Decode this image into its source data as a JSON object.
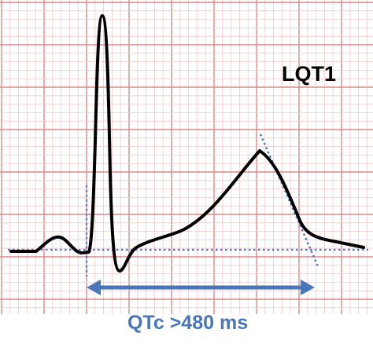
{
  "title": "LQT1",
  "measurement": {
    "label": "QTc >480 ms"
  },
  "colors": {
    "grid_major": "#d98a8a",
    "grid_minor": "#f0caca",
    "trace": "#000000",
    "annotation": "#4a76b8",
    "dotted": "#4a76b8"
  }
}
